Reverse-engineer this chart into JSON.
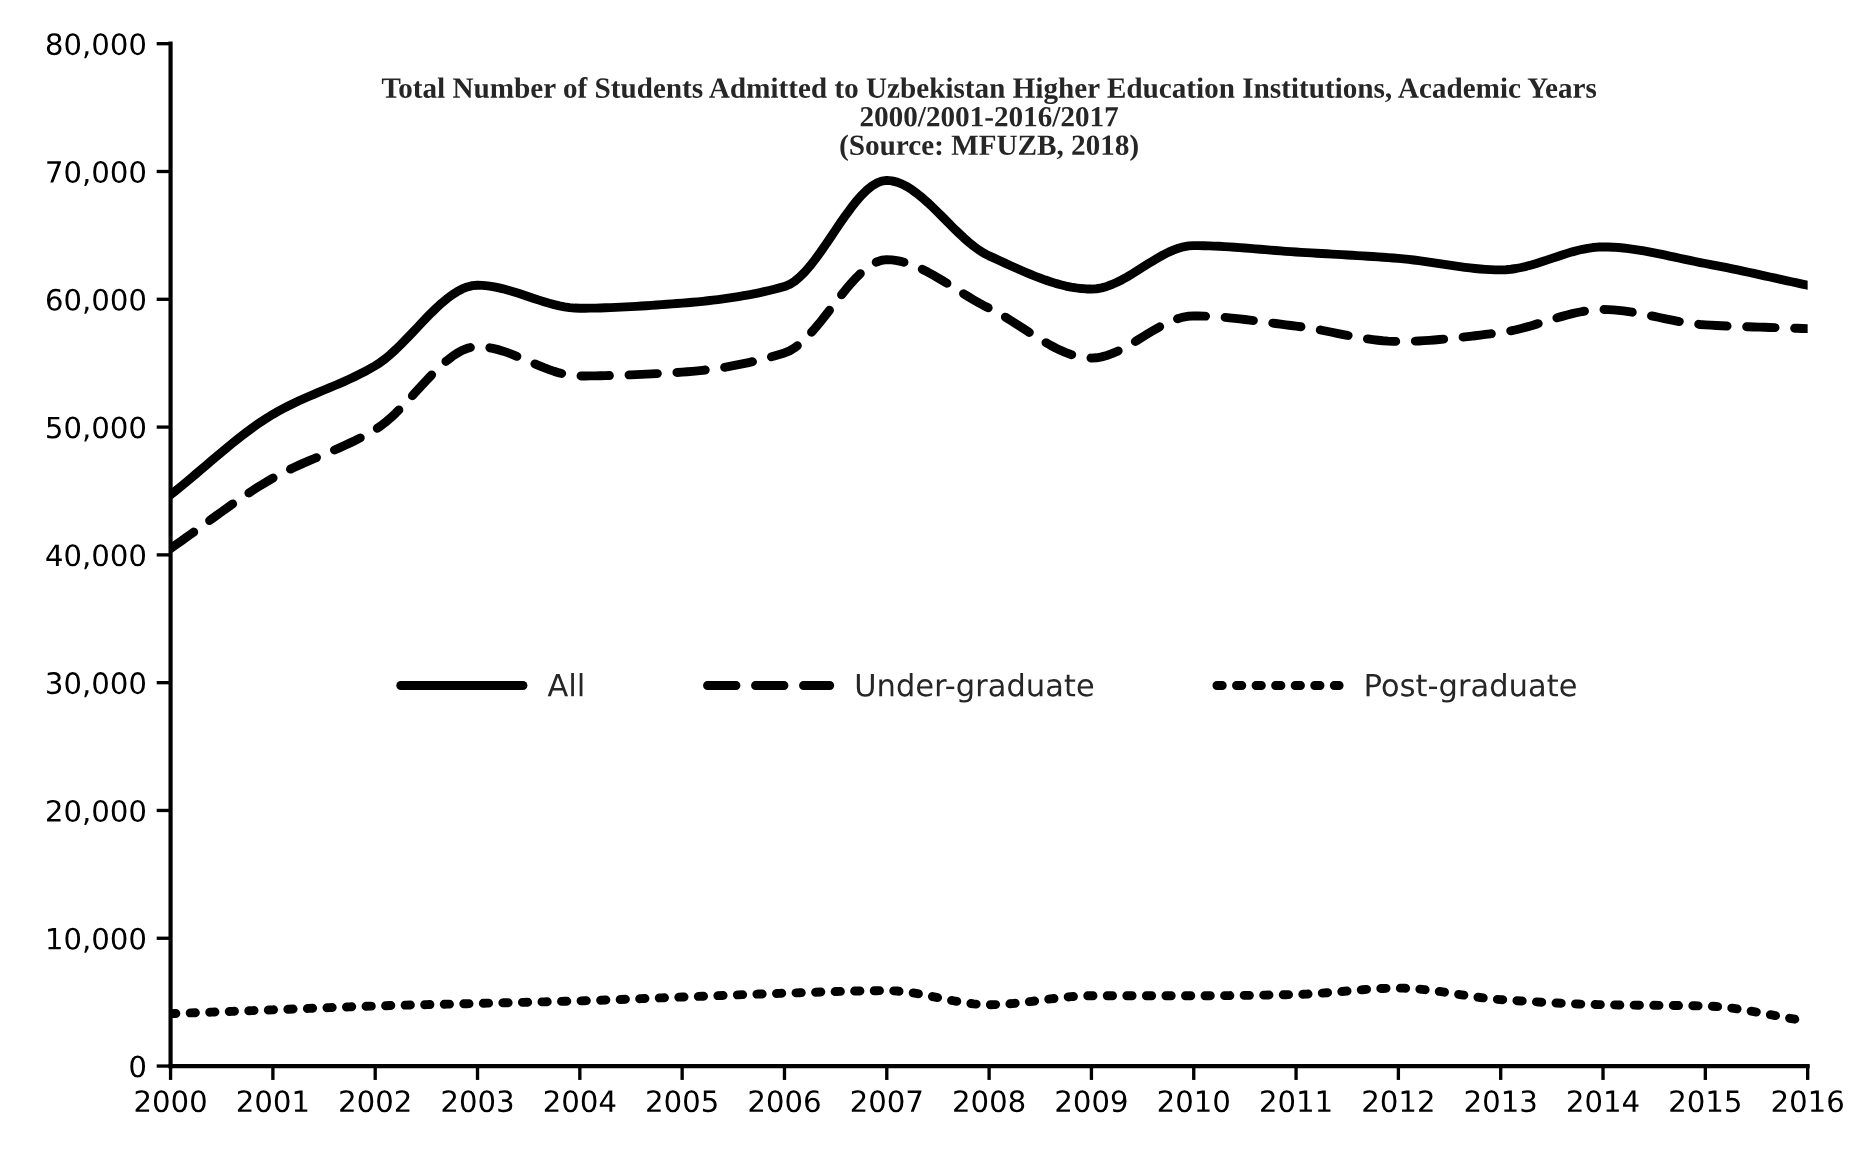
{
  "chart_data": {
    "type": "line",
    "title": "Total Number of Students Admitted to Uzbekistan Higher Education Institutions, Academic Years\n2000/2001-2016/2017\n(Source: MFUZB, 2018)",
    "x": [
      2000,
      2001,
      2002,
      2003,
      2004,
      2005,
      2006,
      2007,
      2008,
      2009,
      2010,
      2011,
      2012,
      2013,
      2014,
      2015,
      2016
    ],
    "series": [
      {
        "name": "All",
        "color": "#000000",
        "line_style": "solid",
        "values": [
          44700,
          51000,
          54800,
          61100,
          59300,
          59700,
          61000,
          69300,
          63400,
          60800,
          64200,
          63700,
          63200,
          62300,
          64100,
          62800,
          61100
        ]
      },
      {
        "name": "Under-graduate",
        "color": "#000000",
        "line_style": "dashed",
        "values": [
          40500,
          46000,
          49800,
          56300,
          54000,
          54300,
          55800,
          63100,
          59300,
          55400,
          58700,
          57900,
          56700,
          57400,
          59200,
          58000,
          57700
        ]
      },
      {
        "name": "Post-graduate",
        "color": "#000000",
        "line_style": "dotted",
        "values": [
          4100,
          4400,
          4700,
          4900,
          5100,
          5400,
          5700,
          5900,
          4800,
          5500,
          5500,
          5600,
          6100,
          5200,
          4800,
          4700,
          3500
        ]
      }
    ],
    "xlim": [
      2000,
      2016
    ],
    "xticks": [
      2000,
      2001,
      2002,
      2003,
      2004,
      2005,
      2006,
      2007,
      2008,
      2009,
      2010,
      2011,
      2012,
      2013,
      2014,
      2015,
      2016
    ],
    "ylim": [
      0,
      80000
    ],
    "yticks": [
      {
        "value": 0,
        "label": "0"
      },
      {
        "value": 10000,
        "label": "10,000"
      },
      {
        "value": 20000,
        "label": "20,000"
      },
      {
        "value": 30000,
        "label": "30,000"
      },
      {
        "value": 40000,
        "label": "40,000"
      },
      {
        "value": 50000,
        "label": "50,000"
      },
      {
        "value": 60000,
        "label": "60,000"
      },
      {
        "value": 70000,
        "label": "70,000"
      },
      {
        "value": 80000,
        "label": "80,000"
      }
    ],
    "grid": false,
    "legend": "center",
    "marker": "none"
  }
}
